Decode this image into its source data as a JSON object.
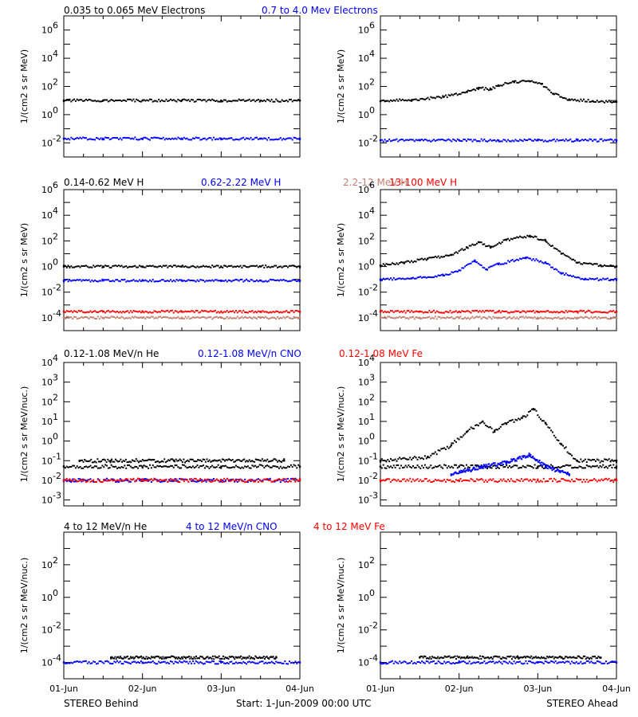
{
  "row_titles": [
    [
      {
        "text": "0.035 to 0.065 MeV Electrons",
        "color": "#000000"
      },
      {
        "text": "0.7 to 4.0 Mev Electrons",
        "color": "#0000ff"
      }
    ],
    [
      {
        "text": "0.14-0.62 MeV H",
        "color": "#000000"
      },
      {
        "text": "0.62-2.22 MeV H",
        "color": "#0000ff"
      },
      {
        "text": "2.2-12 MeV H",
        "color": "#c08070"
      },
      {
        "text": "13-100 MeV H",
        "color": "#ff0000"
      }
    ],
    [
      {
        "text": "0.12-1.08 MeV/n He",
        "color": "#000000"
      },
      {
        "text": "0.12-1.08 MeV/n CNO",
        "color": "#0000ff"
      },
      {
        "text": "0.12-1.08 MeV Fe",
        "color": "#ff0000"
      }
    ],
    [
      {
        "text": "4 to 12 MeV/n He",
        "color": "#000000"
      },
      {
        "text": "4 to 12 MeV/n CNO",
        "color": "#0000ff"
      },
      {
        "text": "4 to 12 MeV Fe",
        "color": "#ff0000"
      }
    ]
  ],
  "footer": {
    "left": "STEREO Behind",
    "center": "Start:  1-Jun-2009 00:00 UTC",
    "right": "STEREO Ahead"
  },
  "chart_data": [
    {
      "type": "scatter",
      "panel": "behind-electrons",
      "ylabel": "1/(cm2 s sr MeV)",
      "yscale": "log",
      "ylim": [
        0.001,
        10000000
      ],
      "xlim": [
        "01-Jun",
        "04-Jun"
      ],
      "xticks": [
        "01-Jun",
        "02-Jun",
        "03-Jun",
        "04-Jun"
      ],
      "yticks": [
        {
          "exp": "-2"
        },
        {
          "exp": "0"
        },
        {
          "exp": "2"
        },
        {
          "exp": "4"
        },
        {
          "exp": "6"
        }
      ],
      "series": [
        {
          "color": "#000000",
          "points": [
            [
              0,
              10
            ],
            [
              0.5,
              10
            ],
            [
              1,
              10
            ],
            [
              1.5,
              10
            ],
            [
              2,
              10
            ],
            [
              2.5,
              10
            ],
            [
              3,
              10
            ]
          ]
        },
        {
          "color": "#0000ff",
          "points": [
            [
              0,
              0.02
            ],
            [
              0.5,
              0.02
            ],
            [
              1,
              0.02
            ],
            [
              1.5,
              0.02
            ],
            [
              2,
              0.02
            ],
            [
              2.5,
              0.02
            ],
            [
              3,
              0.02
            ]
          ]
        }
      ]
    },
    {
      "type": "scatter",
      "panel": "ahead-electrons",
      "ylabel": "1/(cm2 s sr MeV)",
      "yscale": "log",
      "ylim": [
        0.001,
        10000000
      ],
      "xlim": [
        "01-Jun",
        "04-Jun"
      ],
      "xticks": [
        "01-Jun",
        "02-Jun",
        "03-Jun",
        "04-Jun"
      ],
      "yticks": [
        {
          "exp": "-2"
        },
        {
          "exp": "0"
        },
        {
          "exp": "2"
        },
        {
          "exp": "4"
        },
        {
          "exp": "6"
        }
      ],
      "series": [
        {
          "color": "#000000",
          "points": [
            [
              0,
              9
            ],
            [
              0.4,
              11
            ],
            [
              0.8,
              18
            ],
            [
              1.1,
              40
            ],
            [
              1.25,
              80
            ],
            [
              1.4,
              60
            ],
            [
              1.5,
              120
            ],
            [
              1.7,
              200
            ],
            [
              1.9,
              230
            ],
            [
              2.05,
              150
            ],
            [
              2.2,
              30
            ],
            [
              2.4,
              12
            ],
            [
              2.7,
              9
            ],
            [
              3,
              8
            ]
          ]
        },
        {
          "color": "#0000ff",
          "points": [
            [
              0,
              0.015
            ],
            [
              0.5,
              0.015
            ],
            [
              1,
              0.015
            ],
            [
              1.5,
              0.015
            ],
            [
              2,
              0.015
            ],
            [
              2.5,
              0.015
            ],
            [
              3,
              0.015
            ]
          ]
        }
      ]
    },
    {
      "type": "scatter",
      "panel": "behind-protons",
      "ylabel": "1/(cm2 s sr MeV)",
      "yscale": "log",
      "ylim": [
        1e-05,
        1000000
      ],
      "xlim": [
        "01-Jun",
        "04-Jun"
      ],
      "xticks": [
        "01-Jun",
        "02-Jun",
        "03-Jun",
        "04-Jun"
      ],
      "yticks": [
        {
          "exp": "-4"
        },
        {
          "exp": "-2"
        },
        {
          "exp": "0"
        },
        {
          "exp": "2"
        },
        {
          "exp": "4"
        },
        {
          "exp": "6"
        }
      ],
      "series": [
        {
          "color": "#000000",
          "points": [
            [
              0,
              1
            ],
            [
              0.5,
              1
            ],
            [
              1,
              1
            ],
            [
              1.5,
              1
            ],
            [
              2,
              1
            ],
            [
              2.5,
              1
            ],
            [
              3,
              1
            ]
          ]
        },
        {
          "color": "#0000ff",
          "points": [
            [
              0,
              0.08
            ],
            [
              0.5,
              0.08
            ],
            [
              1,
              0.08
            ],
            [
              1.5,
              0.08
            ],
            [
              2,
              0.08
            ],
            [
              2.5,
              0.08
            ],
            [
              3,
              0.08
            ]
          ]
        },
        {
          "color": "#ff0000",
          "points": [
            [
              0,
              0.0003
            ],
            [
              0.5,
              0.0003
            ],
            [
              1,
              0.0003
            ],
            [
              1.5,
              0.0003
            ],
            [
              2,
              0.0003
            ],
            [
              2.5,
              0.0003
            ],
            [
              3,
              0.0003
            ]
          ]
        },
        {
          "color": "#c08070",
          "points": [
            [
              0,
              0.0001
            ],
            [
              0.5,
              0.0001
            ],
            [
              1,
              0.0001
            ],
            [
              1.5,
              0.0001
            ],
            [
              2,
              0.0001
            ],
            [
              2.5,
              0.0001
            ],
            [
              3,
              0.0001
            ]
          ]
        }
      ]
    },
    {
      "type": "scatter",
      "panel": "ahead-protons",
      "ylabel": "1/(cm2 s sr MeV)",
      "yscale": "log",
      "ylim": [
        1e-05,
        1000000
      ],
      "xlim": [
        "01-Jun",
        "04-Jun"
      ],
      "xticks": [
        "01-Jun",
        "02-Jun",
        "03-Jun",
        "04-Jun"
      ],
      "yticks": [
        {
          "exp": "-4"
        },
        {
          "exp": "-2"
        },
        {
          "exp": "0"
        },
        {
          "exp": "2"
        },
        {
          "exp": "4"
        },
        {
          "exp": "6"
        }
      ],
      "series": [
        {
          "color": "#000000",
          "points": [
            [
              0,
              1.2
            ],
            [
              0.3,
              2
            ],
            [
              0.6,
              4
            ],
            [
              0.9,
              8
            ],
            [
              1.1,
              30
            ],
            [
              1.25,
              80
            ],
            [
              1.4,
              30
            ],
            [
              1.6,
              120
            ],
            [
              1.9,
              250
            ],
            [
              2.1,
              100
            ],
            [
              2.3,
              10
            ],
            [
              2.5,
              2
            ],
            [
              2.8,
              1.2
            ],
            [
              3,
              1
            ]
          ]
        },
        {
          "color": "#0000ff",
          "points": [
            [
              0,
              0.1
            ],
            [
              0.4,
              0.12
            ],
            [
              0.8,
              0.2
            ],
            [
              1,
              0.5
            ],
            [
              1.2,
              3
            ],
            [
              1.35,
              0.6
            ],
            [
              1.5,
              1.5
            ],
            [
              1.85,
              5
            ],
            [
              2.1,
              2
            ],
            [
              2.3,
              0.3
            ],
            [
              2.6,
              0.1
            ],
            [
              3,
              0.1
            ]
          ]
        },
        {
          "color": "#ff0000",
          "points": [
            [
              0,
              0.0003
            ],
            [
              0.5,
              0.0003
            ],
            [
              1,
              0.0003
            ],
            [
              1.5,
              0.0003
            ],
            [
              2,
              0.0003
            ],
            [
              2.5,
              0.0003
            ],
            [
              3,
              0.0003
            ]
          ]
        },
        {
          "color": "#c08070",
          "points": [
            [
              0,
              0.0001
            ],
            [
              0.5,
              0.0001
            ],
            [
              1,
              0.0001
            ],
            [
              1.5,
              0.0001
            ],
            [
              2,
              0.0001
            ],
            [
              2.5,
              0.0001
            ],
            [
              3,
              0.0001
            ]
          ]
        }
      ]
    },
    {
      "type": "scatter",
      "panel": "behind-heavy-low",
      "ylabel": "1/(cm2 s sr MeV/nuc.)",
      "yscale": "log",
      "ylim": [
        0.0005,
        10000
      ],
      "xlim": [
        "01-Jun",
        "04-Jun"
      ],
      "xticks": [
        "01-Jun",
        "02-Jun",
        "03-Jun",
        "04-Jun"
      ],
      "yticks": [
        {
          "exp": "-3"
        },
        {
          "exp": "-2"
        },
        {
          "exp": "-1"
        },
        {
          "exp": "0"
        },
        {
          "exp": "1"
        },
        {
          "exp": "2"
        },
        {
          "exp": "3"
        },
        {
          "exp": "4"
        }
      ],
      "series": [
        {
          "color": "#000000",
          "points": [
            [
              0,
              0.05
            ],
            [
              1,
              0.05
            ],
            [
              2,
              0.05
            ],
            [
              3,
              0.05
            ]
          ]
        },
        {
          "color": "#000000",
          "points": [
            [
              0.2,
              0.1
            ],
            [
              0.6,
              0.1
            ],
            [
              1.4,
              0.1
            ],
            [
              1.9,
              0.1
            ],
            [
              2.8,
              0.1
            ]
          ]
        },
        {
          "color": "#0000ff",
          "points": [
            [
              0,
              0.01
            ],
            [
              1,
              0.01
            ],
            [
              2,
              0.01
            ],
            [
              3,
              0.01
            ]
          ]
        },
        {
          "color": "#ff0000",
          "points": [
            [
              0,
              0.01
            ],
            [
              1,
              0.01
            ],
            [
              2,
              0.01
            ],
            [
              3,
              0.01
            ]
          ]
        }
      ]
    },
    {
      "type": "scatter",
      "panel": "ahead-heavy-low",
      "ylabel": "1/(cm2 s sr MeV/nuc.)",
      "yscale": "log",
      "ylim": [
        0.0005,
        10000
      ],
      "xlim": [
        "01-Jun",
        "04-Jun"
      ],
      "xticks": [
        "01-Jun",
        "02-Jun",
        "03-Jun",
        "04-Jun"
      ],
      "yticks": [
        {
          "exp": "-3"
        },
        {
          "exp": "-2"
        },
        {
          "exp": "-1"
        },
        {
          "exp": "0"
        },
        {
          "exp": "1"
        },
        {
          "exp": "2"
        },
        {
          "exp": "3"
        },
        {
          "exp": "4"
        }
      ],
      "series": [
        {
          "color": "#000000",
          "points": [
            [
              0,
              0.1
            ],
            [
              0.6,
              0.15
            ],
            [
              0.9,
              0.6
            ],
            [
              1.1,
              3
            ],
            [
              1.3,
              10
            ],
            [
              1.45,
              3
            ],
            [
              1.6,
              8
            ],
            [
              1.8,
              15
            ],
            [
              1.95,
              40
            ],
            [
              2.1,
              8
            ],
            [
              2.3,
              0.7
            ],
            [
              2.5,
              0.1
            ],
            [
              3,
              0.1
            ]
          ]
        },
        {
          "color": "#000000",
          "points": [
            [
              0,
              0.05
            ],
            [
              1,
              0.05
            ],
            [
              2,
              0.05
            ],
            [
              3,
              0.05
            ]
          ]
        },
        {
          "color": "#0000ff",
          "points": [
            [
              0.9,
              0.02
            ],
            [
              1.3,
              0.05
            ],
            [
              1.6,
              0.08
            ],
            [
              1.9,
              0.2
            ],
            [
              2.1,
              0.05
            ],
            [
              2.4,
              0.02
            ]
          ]
        },
        {
          "color": "#ff0000",
          "points": [
            [
              0,
              0.01
            ],
            [
              1,
              0.01
            ],
            [
              2,
              0.01
            ],
            [
              3,
              0.01
            ]
          ]
        }
      ]
    },
    {
      "type": "scatter",
      "panel": "behind-heavy-high",
      "ylabel": "1/(cm2 s sr MeV/nuc.)",
      "yscale": "log",
      "ylim": [
        1e-05,
        10000
      ],
      "xlim": [
        "01-Jun",
        "04-Jun"
      ],
      "xticks": [
        "01-Jun",
        "02-Jun",
        "03-Jun",
        "04-Jun"
      ],
      "yticks": [
        {
          "exp": "-4"
        },
        {
          "exp": "-2"
        },
        {
          "exp": "0"
        },
        {
          "exp": "2"
        }
      ],
      "series": [
        {
          "color": "#0000ff",
          "points": [
            [
              0,
              0.0001
            ],
            [
              1,
              0.0001
            ],
            [
              2,
              0.0001
            ],
            [
              3,
              0.0001
            ]
          ]
        },
        {
          "color": "#000000",
          "points": [
            [
              0.6,
              0.0002
            ],
            [
              0.95,
              0.0002
            ],
            [
              1.3,
              0.0002
            ],
            [
              2.2,
              0.0002
            ],
            [
              2.7,
              0.0002
            ]
          ]
        }
      ]
    },
    {
      "type": "scatter",
      "panel": "ahead-heavy-high",
      "ylabel": "1/(cm2 s sr MeV/nuc.)",
      "yscale": "log",
      "ylim": [
        1e-05,
        10000
      ],
      "xlim": [
        "01-Jun",
        "04-Jun"
      ],
      "xticks": [
        "01-Jun",
        "02-Jun",
        "03-Jun",
        "04-Jun"
      ],
      "yticks": [
        {
          "exp": "-4"
        },
        {
          "exp": "-2"
        },
        {
          "exp": "0"
        },
        {
          "exp": "2"
        }
      ],
      "series": [
        {
          "color": "#0000ff",
          "points": [
            [
              0,
              0.0001
            ],
            [
              1,
              0.0001
            ],
            [
              2,
              0.0001
            ],
            [
              3,
              0.0001
            ]
          ]
        },
        {
          "color": "#000000",
          "points": [
            [
              0.5,
              0.0002
            ],
            [
              1.1,
              0.0002
            ],
            [
              1.75,
              0.0002
            ],
            [
              2.3,
              0.0002
            ],
            [
              2.8,
              0.0002
            ]
          ]
        }
      ]
    }
  ]
}
